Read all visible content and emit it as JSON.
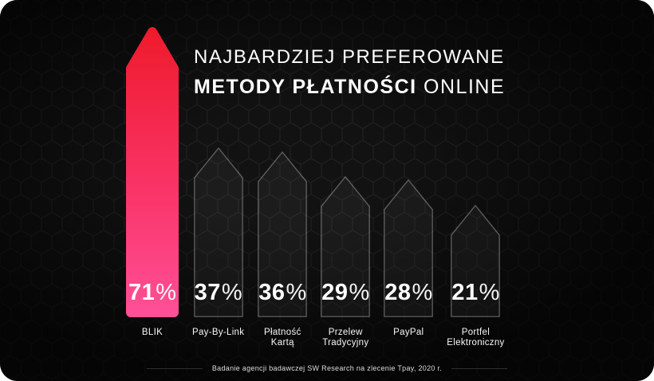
{
  "header": {
    "title_line1": "NAJBARDZIEJ PREFEROWANE",
    "title_line2_accent": "METODY PŁATNOŚCI",
    "title_line2_rest": "ONLINE"
  },
  "chart_data": {
    "type": "bar",
    "title": "Najbardziej preferowane metody płatności online",
    "categories": [
      "BLIK",
      "Pay-By-Link",
      "Płatność Kartą",
      "Przelew Tradycyjny",
      "PayPal",
      "Portfel Elektroniczny"
    ],
    "label_lines": [
      [
        "BLIK"
      ],
      [
        "Pay-By-Link"
      ],
      [
        "Płatność",
        "Kartą"
      ],
      [
        "Przelew",
        "Tradycyjny"
      ],
      [
        "PayPal"
      ],
      [
        "Portfel",
        "Elektroniczny"
      ]
    ],
    "values": [
      71,
      37,
      36,
      29,
      28,
      21
    ],
    "value_labels": [
      "71%",
      "37%",
      "36%",
      "29%",
      "28%",
      "21%"
    ],
    "unit": "%",
    "ylim": [
      0,
      100
    ],
    "highlight_index": 0,
    "legend": false,
    "colors": {
      "accent_red": "#e22c3c",
      "highlight_gradient_top": "#ef1b2d",
      "highlight_gradient_mid": "#f93366",
      "highlight_gradient_bottom": "#ff4f96",
      "bar_fill": "rgba(255,255,255,0.045)",
      "bar_stroke": "rgba(255,255,255,0.30)",
      "background": "#0a0a0a"
    }
  },
  "footer": {
    "text": "Badanie agencji badawczej SW Research na zlecenie Tpay, 2020 r."
  }
}
